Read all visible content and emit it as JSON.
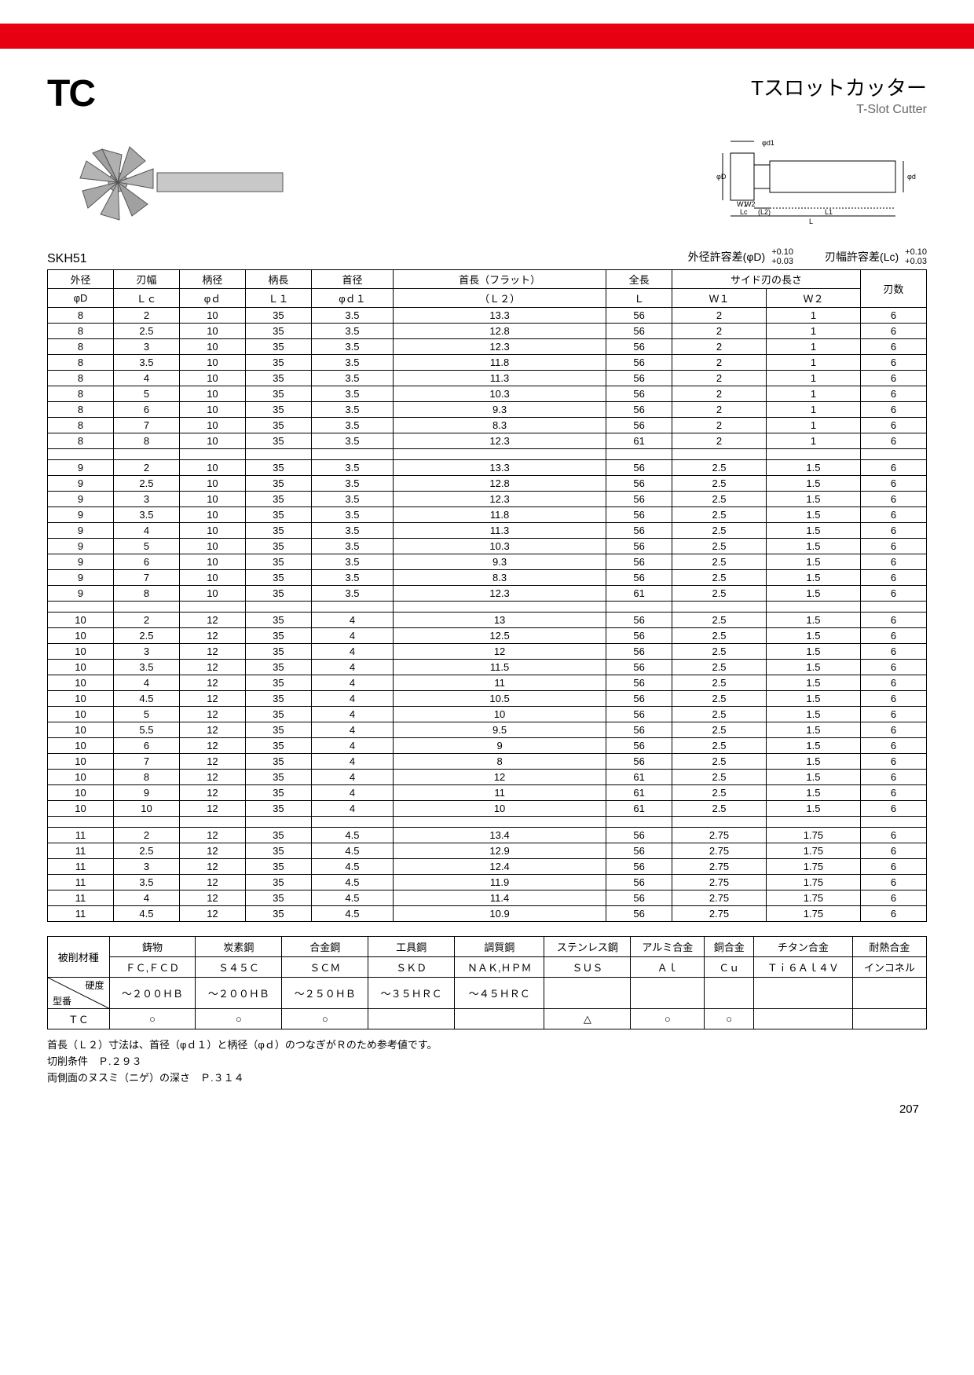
{
  "logo": "TC",
  "title_jp": "Tスロットカッター",
  "title_en": "T-Slot Cutter",
  "material": "SKH51",
  "tolerances": [
    {
      "label": "外径許容差(φD)",
      "top": "+0.10",
      "bot": "+0.03"
    },
    {
      "label": "刃幅許容差(Lc)",
      "top": "+0.10",
      "bot": "+0.03"
    }
  ],
  "columns_row1": [
    "外径",
    "刃幅",
    "柄径",
    "柄長",
    "首径",
    "首長（フラット）",
    "全長",
    "サイド刃の長さ",
    "",
    "刃数"
  ],
  "columns_row2": [
    "φD",
    "Ｌｃ",
    "φｄ",
    "Ｌ１",
    "φｄ１",
    "（Ｌ２）",
    "Ｌ",
    "Ｗ１",
    "Ｗ２",
    ""
  ],
  "col_colspan": {
    "7": 2
  },
  "rows": [
    [
      "8",
      "2",
      "10",
      "35",
      "3.5",
      "13.3",
      "56",
      "2",
      "1",
      "6"
    ],
    [
      "8",
      "2.5",
      "10",
      "35",
      "3.5",
      "12.8",
      "56",
      "2",
      "1",
      "6"
    ],
    [
      "8",
      "3",
      "10",
      "35",
      "3.5",
      "12.3",
      "56",
      "2",
      "1",
      "6"
    ],
    [
      "8",
      "3.5",
      "10",
      "35",
      "3.5",
      "11.8",
      "56",
      "2",
      "1",
      "6"
    ],
    [
      "8",
      "4",
      "10",
      "35",
      "3.5",
      "11.3",
      "56",
      "2",
      "1",
      "6"
    ],
    [
      "8",
      "5",
      "10",
      "35",
      "3.5",
      "10.3",
      "56",
      "2",
      "1",
      "6"
    ],
    [
      "8",
      "6",
      "10",
      "35",
      "3.5",
      "9.3",
      "56",
      "2",
      "1",
      "6"
    ],
    [
      "8",
      "7",
      "10",
      "35",
      "3.5",
      "8.3",
      "56",
      "2",
      "1",
      "6"
    ],
    [
      "8",
      "8",
      "10",
      "35",
      "3.5",
      "12.3",
      "61",
      "2",
      "1",
      "6"
    ],
    "gap",
    [
      "9",
      "2",
      "10",
      "35",
      "3.5",
      "13.3",
      "56",
      "2.5",
      "1.5",
      "6"
    ],
    [
      "9",
      "2.5",
      "10",
      "35",
      "3.5",
      "12.8",
      "56",
      "2.5",
      "1.5",
      "6"
    ],
    [
      "9",
      "3",
      "10",
      "35",
      "3.5",
      "12.3",
      "56",
      "2.5",
      "1.5",
      "6"
    ],
    [
      "9",
      "3.5",
      "10",
      "35",
      "3.5",
      "11.8",
      "56",
      "2.5",
      "1.5",
      "6"
    ],
    [
      "9",
      "4",
      "10",
      "35",
      "3.5",
      "11.3",
      "56",
      "2.5",
      "1.5",
      "6"
    ],
    [
      "9",
      "5",
      "10",
      "35",
      "3.5",
      "10.3",
      "56",
      "2.5",
      "1.5",
      "6"
    ],
    [
      "9",
      "6",
      "10",
      "35",
      "3.5",
      "9.3",
      "56",
      "2.5",
      "1.5",
      "6"
    ],
    [
      "9",
      "7",
      "10",
      "35",
      "3.5",
      "8.3",
      "56",
      "2.5",
      "1.5",
      "6"
    ],
    [
      "9",
      "8",
      "10",
      "35",
      "3.5",
      "12.3",
      "61",
      "2.5",
      "1.5",
      "6"
    ],
    "gap",
    [
      "10",
      "2",
      "12",
      "35",
      "4",
      "13",
      "56",
      "2.5",
      "1.5",
      "6"
    ],
    [
      "10",
      "2.5",
      "12",
      "35",
      "4",
      "12.5",
      "56",
      "2.5",
      "1.5",
      "6"
    ],
    [
      "10",
      "3",
      "12",
      "35",
      "4",
      "12",
      "56",
      "2.5",
      "1.5",
      "6"
    ],
    [
      "10",
      "3.5",
      "12",
      "35",
      "4",
      "11.5",
      "56",
      "2.5",
      "1.5",
      "6"
    ],
    [
      "10",
      "4",
      "12",
      "35",
      "4",
      "11",
      "56",
      "2.5",
      "1.5",
      "6"
    ],
    [
      "10",
      "4.5",
      "12",
      "35",
      "4",
      "10.5",
      "56",
      "2.5",
      "1.5",
      "6"
    ],
    [
      "10",
      "5",
      "12",
      "35",
      "4",
      "10",
      "56",
      "2.5",
      "1.5",
      "6"
    ],
    [
      "10",
      "5.5",
      "12",
      "35",
      "4",
      "9.5",
      "56",
      "2.5",
      "1.5",
      "6"
    ],
    [
      "10",
      "6",
      "12",
      "35",
      "4",
      "9",
      "56",
      "2.5",
      "1.5",
      "6"
    ],
    [
      "10",
      "7",
      "12",
      "35",
      "4",
      "8",
      "56",
      "2.5",
      "1.5",
      "6"
    ],
    [
      "10",
      "8",
      "12",
      "35",
      "4",
      "12",
      "61",
      "2.5",
      "1.5",
      "6"
    ],
    [
      "10",
      "9",
      "12",
      "35",
      "4",
      "11",
      "61",
      "2.5",
      "1.5",
      "6"
    ],
    [
      "10",
      "10",
      "12",
      "35",
      "4",
      "10",
      "61",
      "2.5",
      "1.5",
      "6"
    ],
    "gap",
    [
      "11",
      "2",
      "12",
      "35",
      "4.5",
      "13.4",
      "56",
      "2.75",
      "1.75",
      "6"
    ],
    [
      "11",
      "2.5",
      "12",
      "35",
      "4.5",
      "12.9",
      "56",
      "2.75",
      "1.75",
      "6"
    ],
    [
      "11",
      "3",
      "12",
      "35",
      "4.5",
      "12.4",
      "56",
      "2.75",
      "1.75",
      "6"
    ],
    [
      "11",
      "3.5",
      "12",
      "35",
      "4.5",
      "11.9",
      "56",
      "2.75",
      "1.75",
      "6"
    ],
    [
      "11",
      "4",
      "12",
      "35",
      "4.5",
      "11.4",
      "56",
      "2.75",
      "1.75",
      "6"
    ],
    [
      "11",
      "4.5",
      "12",
      "35",
      "4.5",
      "10.9",
      "56",
      "2.75",
      "1.75",
      "6"
    ]
  ],
  "mat_table": {
    "head_label": "被削材種",
    "head1": [
      "鋳物",
      "炭素鋼",
      "合金鋼",
      "工具鋼",
      "調質鋼",
      "ステンレス鋼",
      "アルミ合金",
      "銅合金",
      "チタン合金",
      "耐熱合金"
    ],
    "head2": [
      "ＦＣ,ＦＣＤ",
      "Ｓ４５Ｃ",
      "ＳＣＭ",
      "ＳＫＤ",
      "ＮＡＫ,ＨＰＭ",
      "ＳＵＳ",
      "Ａｌ",
      "Ｃｕ",
      "Ｔｉ６Ａｌ４Ｖ",
      "インコネル"
    ],
    "hardness_label_top": "硬度",
    "hardness_label_bot": "型番",
    "hardness": [
      "～２００ＨＢ",
      "～２００ＨＢ",
      "～２５０ＨＢ",
      "～３５ＨＲＣ",
      "～４５ＨＲＣ",
      "",
      "",
      "",
      "",
      ""
    ],
    "model": "ＴＣ",
    "marks": [
      "○",
      "○",
      "○",
      "",
      "",
      "△",
      "○",
      "○",
      "",
      ""
    ]
  },
  "notes": [
    "首長（Ｌ２）寸法は、首径（φｄ１）と柄径（φｄ）のつなぎがＲのため参考値です。",
    "切削条件　Ｐ.２９３",
    "両側面のヌスミ（ニゲ）の深さ　Ｐ.３１４"
  ],
  "page_num": "207"
}
